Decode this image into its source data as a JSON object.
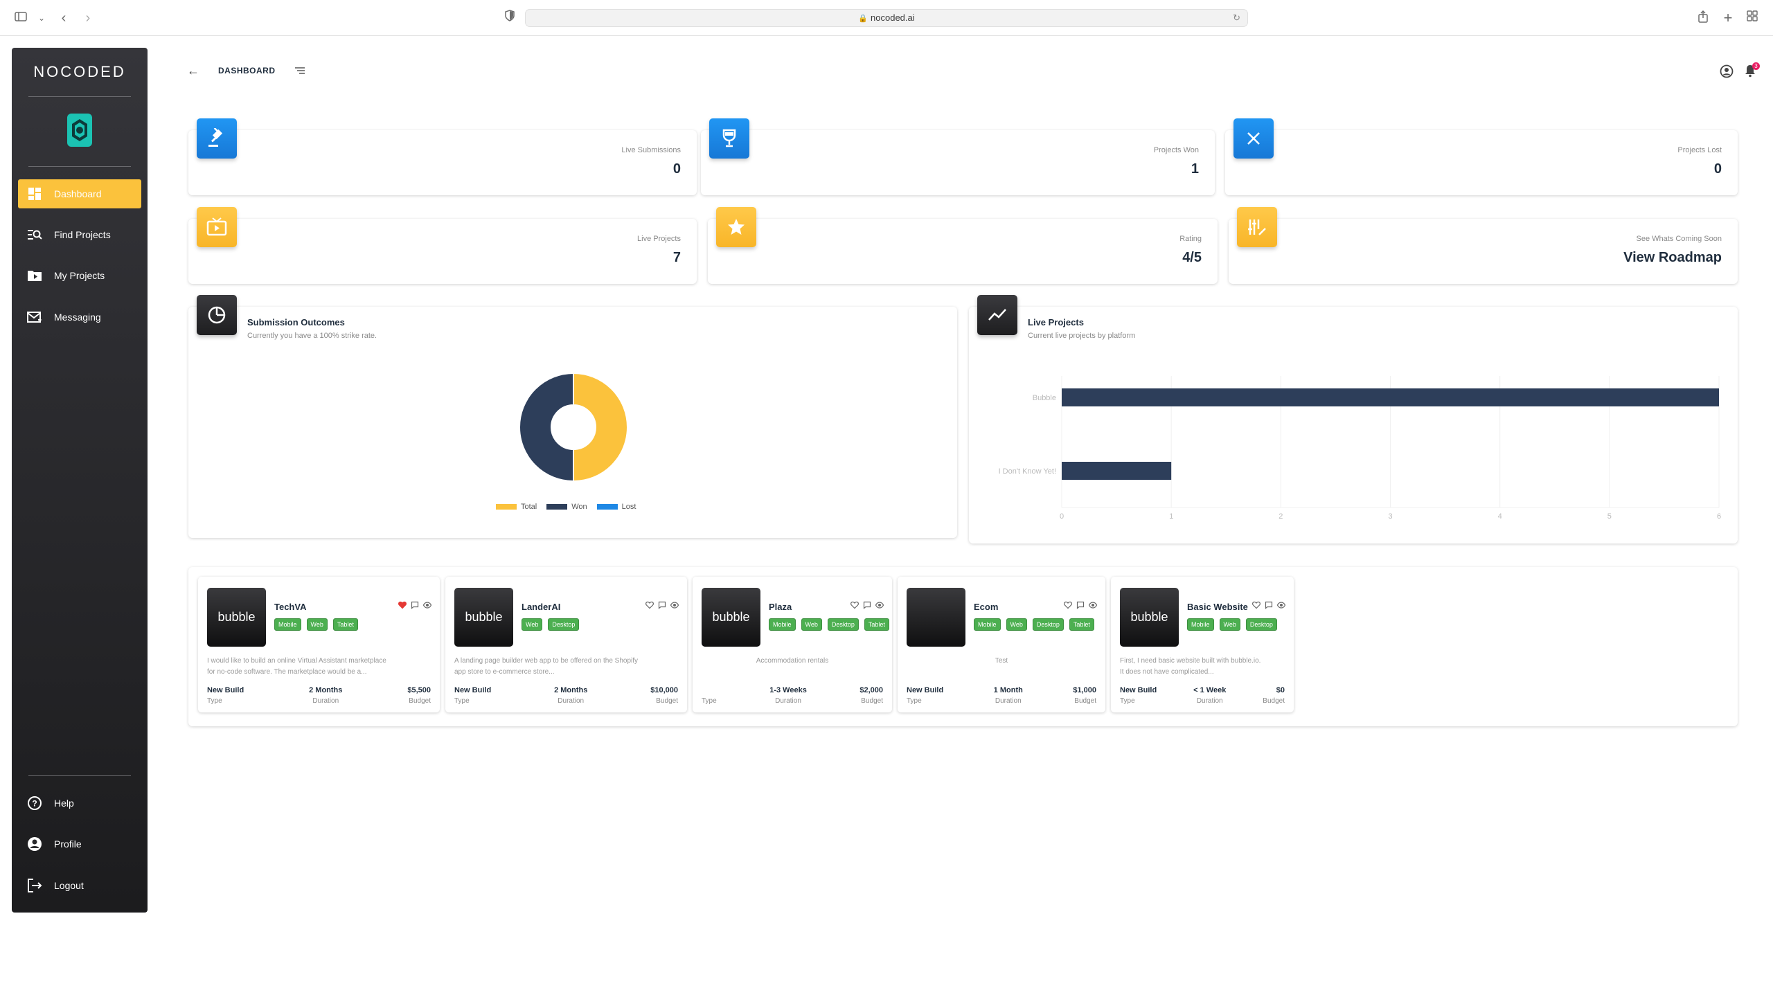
{
  "browser": {
    "url": "nocoded.ai"
  },
  "sidebar": {
    "logo": "NOCODED",
    "items": [
      {
        "label": "Dashboard"
      },
      {
        "label": "Find Projects"
      },
      {
        "label": "My Projects"
      },
      {
        "label": "Messaging"
      }
    ],
    "bottom_items": [
      {
        "label": "Help"
      },
      {
        "label": "Profile"
      },
      {
        "label": "Logout"
      }
    ]
  },
  "header": {
    "title": "DASHBOARD",
    "notification_count": "3"
  },
  "stats": [
    {
      "label": "Live Submissions",
      "value": "0",
      "icon": "gavel-icon",
      "color": "#1e88e5"
    },
    {
      "label": "Projects Won",
      "value": "1",
      "icon": "trophy-icon",
      "color": "#1e88e5"
    },
    {
      "label": "Projects Lost",
      "value": "0",
      "icon": "close-icon",
      "color": "#1e88e5"
    },
    {
      "label": "Live Projects",
      "value": "7",
      "icon": "tv-icon",
      "color": "#fbc23c"
    },
    {
      "label": "Rating",
      "value": "4/5",
      "icon": "star-icon",
      "color": "#fbc23c"
    },
    {
      "label": "See Whats Coming Soon",
      "value": "View Roadmap",
      "icon": "roadmap-icon",
      "color": "#fbc23c"
    }
  ],
  "submission_outcomes": {
    "title": "Submission Outcomes",
    "subtitle": "Currently you have a 100% strike rate."
  },
  "live_projects_chart": {
    "title": "Live Projects",
    "subtitle": "Current live projects by platform"
  },
  "chart_data": [
    {
      "type": "pie",
      "variant": "doughnut",
      "labels": [
        "Total",
        "Won",
        "Lost"
      ],
      "values": [
        1,
        1,
        0
      ],
      "colors": [
        "#fbc23c",
        "#2d3e5a",
        "#1e88e5"
      ],
      "legend": "bottom"
    },
    {
      "type": "bar",
      "orientation": "horizontal",
      "categories": [
        "Bubble",
        "I Don't Know Yet!"
      ],
      "values": [
        6,
        1
      ],
      "xlim": [
        0,
        6
      ],
      "xticks": [
        "0",
        "1",
        "2",
        "3",
        "4",
        "5",
        "6"
      ],
      "color": "#2d3e5a",
      "grid": true
    }
  ],
  "projects": [
    {
      "thumb": "bubble",
      "name": "TechVA",
      "tags": [
        "Mobile",
        "Web",
        "Tablet"
      ],
      "desc_line1": "I would like to build an online Virtual Assistant marketplace",
      "desc_line2": "for no-code software. The marketplace would be a...",
      "type": "New Build",
      "type_label": "Type",
      "duration": "2 Months",
      "duration_label": "Duration",
      "budget": "$5,500",
      "budget_label": "Budget",
      "favorited": true
    },
    {
      "thumb": "bubble",
      "name": "LanderAI",
      "tags": [
        "Web",
        "Desktop"
      ],
      "desc_line1": "A landing page builder web app to be offered on the Shopify",
      "desc_line2": "app store to e-commerce store...",
      "type": "New Build",
      "type_label": "Type",
      "duration": "2 Months",
      "duration_label": "Duration",
      "budget": "$10,000",
      "budget_label": "Budget",
      "favorited": false
    },
    {
      "thumb": "bubble",
      "name": "Plaza",
      "tags": [
        "Mobile",
        "Web",
        "Desktop",
        "Tablet"
      ],
      "desc_line1": "Accommodation rentals",
      "desc_line2": "",
      "type": "",
      "type_label": "Type",
      "duration": "1-3 Weeks",
      "duration_label": "Duration",
      "budget": "$2,000",
      "budget_label": "Budget",
      "favorited": false
    },
    {
      "thumb": "",
      "name": "Ecom",
      "tags": [
        "Mobile",
        "Web",
        "Desktop",
        "Tablet"
      ],
      "desc_line1": "Test",
      "desc_line2": "",
      "type": "New Build",
      "type_label": "Type",
      "duration": "1 Month",
      "duration_label": "Duration",
      "budget": "$1,000",
      "budget_label": "Budget",
      "favorited": false
    },
    {
      "thumb": "bubble",
      "name": "Basic Website",
      "tags": [
        "Mobile",
        "Web",
        "Desktop"
      ],
      "desc_line1": "First, I need basic website built with bubble.io.",
      "desc_line2": "It does not have complicated...",
      "type": "New Build",
      "type_label": "Type",
      "duration": "< 1 Week",
      "duration_label": "Duration",
      "budget": "$0",
      "budget_label": "Budget",
      "favorited": false
    }
  ]
}
